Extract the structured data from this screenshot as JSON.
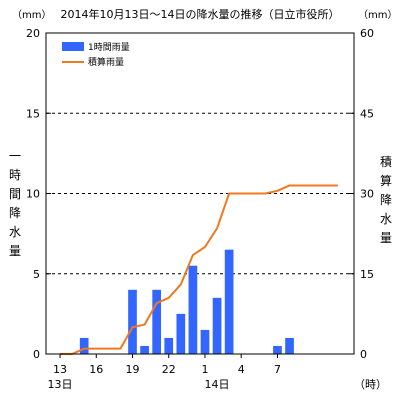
{
  "chart_data": {
    "type": "bar+line",
    "title": "2014年10月13日～14日の降水量の推移（日立市役所）",
    "left_unit": "（mm）",
    "right_unit": "（mm）",
    "left_axis_label": "一時間降水量",
    "right_axis_label": "積算降水量",
    "x_unit": "（時）",
    "colors": {
      "bar": "#3366ff",
      "line": "#f07820",
      "grid": "#000000"
    },
    "left_ylim": [
      0,
      20
    ],
    "right_ylim": [
      0,
      60
    ],
    "left_ticks": [
      "0",
      "5",
      "10",
      "15",
      "20"
    ],
    "right_ticks": [
      "0",
      "15",
      "30",
      "45",
      "60"
    ],
    "grid_lines_at_left_values": [
      5,
      10,
      15
    ],
    "legend": {
      "position": "top-left",
      "items": [
        "1時間雨量",
        "積算雨量"
      ]
    },
    "x_tick_labels": [
      {
        "hour_index": 0,
        "label": "13"
      },
      {
        "hour_index": 3,
        "label": "16"
      },
      {
        "hour_index": 6,
        "label": "19"
      },
      {
        "hour_index": 9,
        "label": "22"
      },
      {
        "hour_index": 12,
        "label": "1"
      },
      {
        "hour_index": 15,
        "label": "4"
      },
      {
        "hour_index": 18,
        "label": "7"
      }
    ],
    "date_labels": [
      {
        "hour_index": 0,
        "label": "13日"
      },
      {
        "hour_index": 13,
        "label": "14日"
      }
    ],
    "hours": [
      0,
      1,
      2,
      3,
      4,
      5,
      6,
      7,
      8,
      9,
      10,
      11,
      12,
      13,
      14,
      15,
      16,
      17,
      18,
      19,
      20,
      21,
      22,
      23
    ],
    "series": [
      {
        "name": "1時間雨量",
        "type": "bar",
        "axis": "left",
        "values": [
          0,
          0,
          1.0,
          0,
          0,
          0,
          4.0,
          0.5,
          4.0,
          1.0,
          2.5,
          5.5,
          1.5,
          3.5,
          6.5,
          0,
          0,
          0,
          0.5,
          1.0,
          0,
          0,
          0,
          0
        ]
      },
      {
        "name": "積算雨量",
        "type": "line",
        "axis": "right",
        "values": [
          0,
          0,
          1.0,
          1.0,
          1.0,
          1.0,
          5.0,
          5.5,
          9.5,
          10.5,
          13.0,
          18.5,
          20.0,
          23.5,
          30.0,
          30.0,
          30.0,
          30.0,
          30.5,
          31.5,
          31.5,
          31.5,
          31.5,
          31.5
        ]
      }
    ]
  }
}
